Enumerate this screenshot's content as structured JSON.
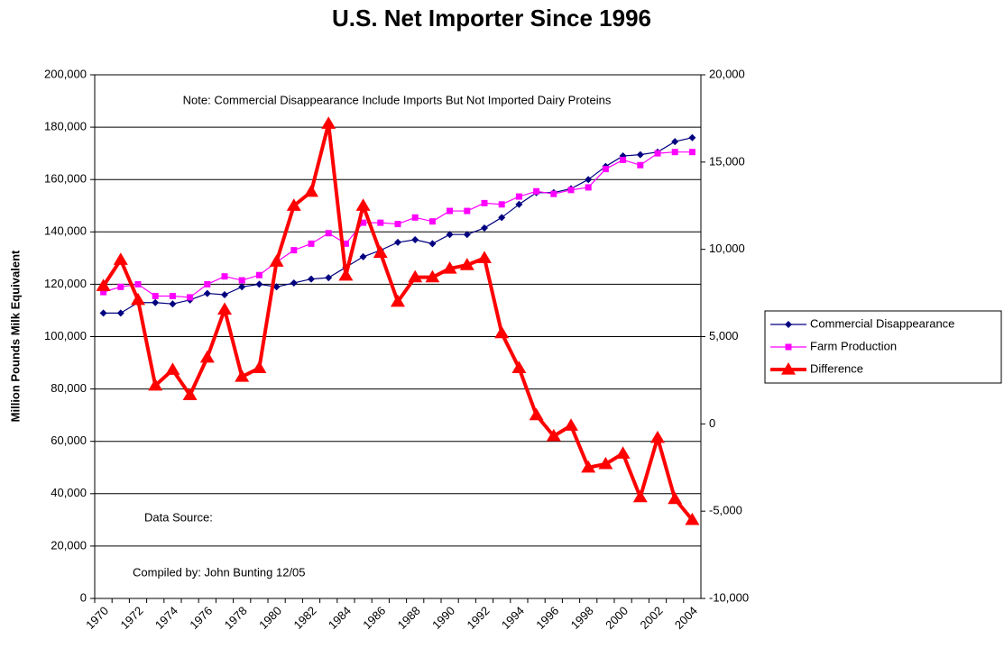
{
  "chart_data": {
    "type": "line",
    "title": "U.S. Net Importer Since 1996",
    "ylabel": "Million Pounds Milk Equivalent",
    "annotations": [
      "Note: Commercial Disappearance Include Imports But Not Imported Dairy Proteins",
      "Data Source:",
      "Compiled by: John Bunting 12/05"
    ],
    "categories": [
      "1970",
      null,
      "1972",
      null,
      "1974",
      null,
      "1976",
      null,
      "1978",
      null,
      "1980",
      null,
      "1982",
      null,
      "1984",
      null,
      "1986",
      null,
      "1988",
      null,
      "1990",
      null,
      "1992",
      null,
      "1994",
      null,
      "1996",
      null,
      "1998",
      null,
      "2000",
      null,
      "2002",
      null,
      "2004"
    ],
    "ylim": [
      0,
      200000
    ],
    "yticks": [
      {
        "value": 0,
        "label": "0"
      },
      {
        "value": 20000,
        "label": "20,000"
      },
      {
        "value": 40000,
        "label": "40,000"
      },
      {
        "value": 60000,
        "label": "60,000"
      },
      {
        "value": 80000,
        "label": "80,000"
      },
      {
        "value": 100000,
        "label": "100,000"
      },
      {
        "value": 120000,
        "label": "120,000"
      },
      {
        "value": 140000,
        "label": "140,000"
      },
      {
        "value": 160000,
        "label": "160,000"
      },
      {
        "value": 180000,
        "label": "180,000"
      },
      {
        "value": 200000,
        "label": "200,000"
      }
    ],
    "y2lim": [
      -10000,
      20000
    ],
    "y2ticks": [
      {
        "value": -10000,
        "label": "-10,000"
      },
      {
        "value": -5000,
        "label": "-5,000"
      },
      0,
      {
        "value": 5000,
        "label": "5,000"
      },
      {
        "value": 10000,
        "label": "10,000"
      },
      {
        "value": 15000,
        "label": "15,000"
      },
      {
        "value": 20000,
        "label": "20,000"
      }
    ],
    "grid": true,
    "legend": "right",
    "series": [
      {
        "name": "Commercial Disappearance",
        "color": "#000080",
        "marker": "diamond",
        "width": 1.2,
        "values": [
          109000,
          109000,
          113000,
          113000,
          112500,
          114000,
          116500,
          116000,
          119000,
          120000,
          119000,
          120500,
          122000,
          122500,
          126500,
          130500,
          133000,
          136000,
          137000,
          135500,
          139000,
          139000,
          141500,
          145500,
          150500,
          155000,
          155000,
          156500,
          160000,
          165000,
          169000,
          169500,
          170500,
          174500,
          176000
        ]
      },
      {
        "name": "Farm Production",
        "color": "#ff00ff",
        "marker": "square",
        "width": 1.2,
        "values": [
          117000,
          119000,
          120000,
          115500,
          115500,
          115000,
          120000,
          123000,
          121500,
          123500,
          128500,
          133000,
          135500,
          139500,
          135500,
          143500,
          143500,
          143000,
          145500,
          144000,
          148000,
          148000,
          151000,
          150500,
          153500,
          155500,
          154500,
          156000,
          157000,
          164000,
          167500,
          165500,
          170000,
          170500,
          170500
        ]
      },
      {
        "name": "Difference",
        "color": "#ff0000",
        "marker": "triangle",
        "width": 4,
        "axis": "y2",
        "values": [
          7900,
          9400,
          7100,
          2200,
          3100,
          1650,
          3800,
          6550,
          2700,
          3200,
          9300,
          12500,
          13300,
          17200,
          8500,
          12500,
          9800,
          7000,
          8400,
          8400,
          8900,
          9100,
          9500,
          5200,
          3200,
          500,
          -700,
          -100,
          -2500,
          -2300,
          -1700,
          -4200,
          -800,
          -4300,
          -5500
        ]
      }
    ]
  }
}
